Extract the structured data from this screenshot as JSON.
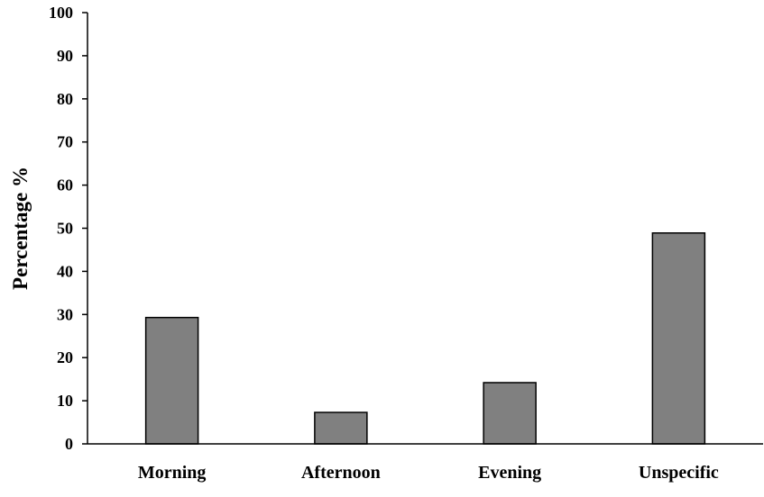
{
  "chart_data": {
    "type": "bar",
    "title": "",
    "xlabel": "",
    "ylabel": "Percentage %",
    "categories": [
      "Morning",
      "Afternoon",
      "Evening",
      "Unspecific"
    ],
    "values": [
      29.3,
      7.3,
      14.2,
      48.9
    ],
    "ylim": [
      0,
      100
    ],
    "yticks": [
      0,
      10,
      20,
      30,
      40,
      50,
      60,
      70,
      80,
      90,
      100
    ],
    "grid": false,
    "bar_color": "#808080",
    "bar_edge_color": "#000000"
  }
}
